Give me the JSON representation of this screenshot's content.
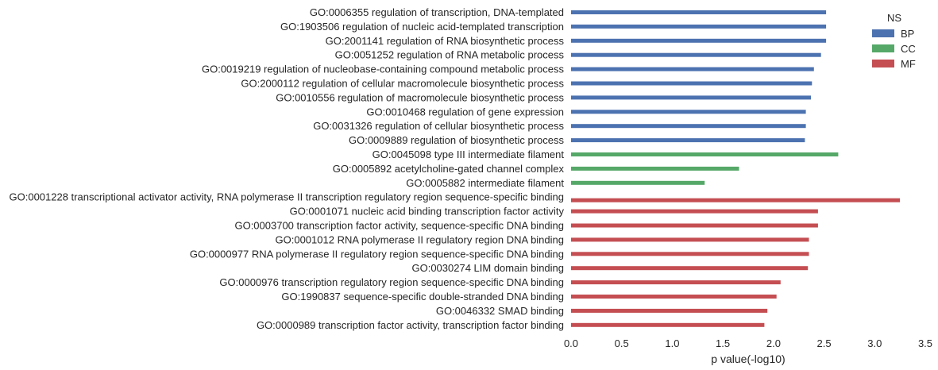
{
  "chart_data": {
    "type": "bar",
    "orientation": "horizontal",
    "xlabel": "p value(-log10)",
    "xlim": [
      0,
      3.5
    ],
    "xticks": [
      "0.0",
      "0.5",
      "1.0",
      "1.5",
      "2.0",
      "2.5",
      "3.0",
      "3.5"
    ],
    "grid": false,
    "legend": {
      "title": "NS",
      "placement": "top-right",
      "entries": [
        {
          "name": "BP",
          "color": "#4c72b0"
        },
        {
          "name": "CC",
          "color": "#55a868"
        },
        {
          "name": "MF",
          "color": "#c44e52"
        }
      ]
    },
    "bars": [
      {
        "label": "GO:0006355 regulation of transcription, DNA-templated",
        "group": "BP",
        "value": 2.52
      },
      {
        "label": "GO:1903506 regulation of nucleic acid-templated transcription",
        "group": "BP",
        "value": 2.52
      },
      {
        "label": "GO:2001141 regulation of RNA biosynthetic process",
        "group": "BP",
        "value": 2.52
      },
      {
        "label": "GO:0051252 regulation of RNA metabolic process",
        "group": "BP",
        "value": 2.47
      },
      {
        "label": "GO:0019219 regulation of nucleobase-containing compound metabolic process",
        "group": "BP",
        "value": 2.4
      },
      {
        "label": "GO:2000112 regulation of cellular macromolecule biosynthetic process",
        "group": "BP",
        "value": 2.38
      },
      {
        "label": "GO:0010556 regulation of macromolecule biosynthetic process",
        "group": "BP",
        "value": 2.37
      },
      {
        "label": "GO:0010468 regulation of gene expression",
        "group": "BP",
        "value": 2.32
      },
      {
        "label": "GO:0031326 regulation of cellular biosynthetic process",
        "group": "BP",
        "value": 2.32
      },
      {
        "label": "GO:0009889 regulation of biosynthetic process",
        "group": "BP",
        "value": 2.31
      },
      {
        "label": "GO:0045098 type III intermediate filament",
        "group": "CC",
        "value": 2.64
      },
      {
        "label": "GO:0005892 acetylcholine-gated channel complex",
        "group": "CC",
        "value": 1.66
      },
      {
        "label": "GO:0005882 intermediate filament",
        "group": "CC",
        "value": 1.32
      },
      {
        "label": "GO:0001228 transcriptional activator activity, RNA polymerase II transcription regulatory region sequence-specific binding",
        "group": "MF",
        "value": 3.25
      },
      {
        "label": "GO:0001071 nucleic acid binding transcription factor activity",
        "group": "MF",
        "value": 2.44
      },
      {
        "label": "GO:0003700 transcription factor activity, sequence-specific DNA binding",
        "group": "MF",
        "value": 2.44
      },
      {
        "label": "GO:0001012 RNA polymerase II regulatory region DNA binding",
        "group": "MF",
        "value": 2.35
      },
      {
        "label": "GO:0000977 RNA polymerase II regulatory region sequence-specific DNA binding",
        "group": "MF",
        "value": 2.35
      },
      {
        "label": "GO:0030274 LIM domain binding",
        "group": "MF",
        "value": 2.34
      },
      {
        "label": "GO:0000976 transcription regulatory region sequence-specific DNA binding",
        "group": "MF",
        "value": 2.07
      },
      {
        "label": "GO:1990837 sequence-specific double-stranded DNA binding",
        "group": "MF",
        "value": 2.03
      },
      {
        "label": "GO:0046332 SMAD binding",
        "group": "MF",
        "value": 1.94
      },
      {
        "label": "GO:0000989 transcription factor activity, transcription factor binding",
        "group": "MF",
        "value": 1.91
      }
    ]
  }
}
